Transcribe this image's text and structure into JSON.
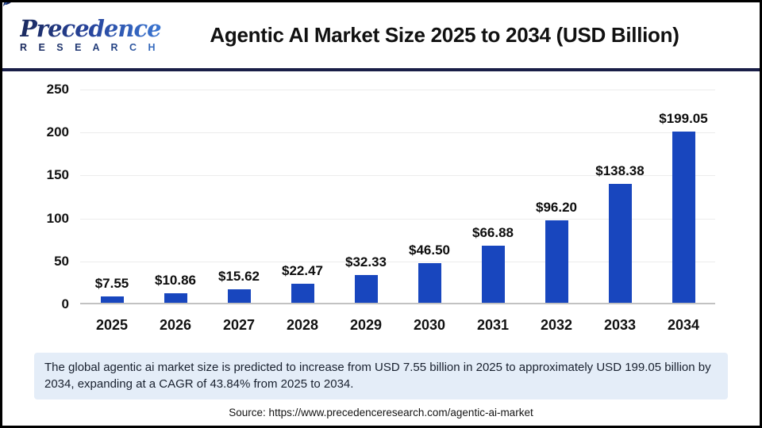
{
  "header": {
    "logo": {
      "brand_top": "Precedence",
      "brand_bottom": "R E S E A R C H"
    },
    "title": "Agentic AI Market Size 2025 to 2034 (USD Billion)"
  },
  "chart_data": {
    "type": "bar",
    "title": "Agentic AI Market Size 2025 to 2034 (USD Billion)",
    "categories": [
      "2025",
      "2026",
      "2027",
      "2028",
      "2029",
      "2030",
      "2031",
      "2032",
      "2033",
      "2034"
    ],
    "values": [
      7.55,
      10.86,
      15.62,
      22.47,
      32.33,
      46.5,
      66.88,
      96.2,
      138.38,
      199.05
    ],
    "value_labels": [
      "$7.55",
      "$10.86",
      "$15.62",
      "$22.47",
      "$32.33",
      "$46.50",
      "$66.88",
      "$96.20",
      "$138.38",
      "$199.05"
    ],
    "xlabel": "",
    "ylabel": "",
    "ylim": [
      0,
      250
    ],
    "yticks": [
      0,
      50,
      100,
      150,
      200,
      250
    ],
    "grid": true,
    "legend_position": "none",
    "bar_color": "#1846BE"
  },
  "footer": {
    "summary": "The global agentic ai market size is predicted to increase from USD 7.55 billion in 2025 to approximately USD 199.05 billion by 2034, expanding at a CAGR of 43.84% from 2025 to 2034.",
    "source": "Source: https://www.precedenceresearch.com/agentic-ai-market"
  },
  "colors": {
    "bar": "#1846BE",
    "header_divider": "#191E47",
    "summary_background": "#E4EDF8",
    "gridline": "#ECECEC",
    "axis_line": "#C2C2C2",
    "logo_navy": "#1B2A5E",
    "logo_blue": "#3D7CD8"
  }
}
